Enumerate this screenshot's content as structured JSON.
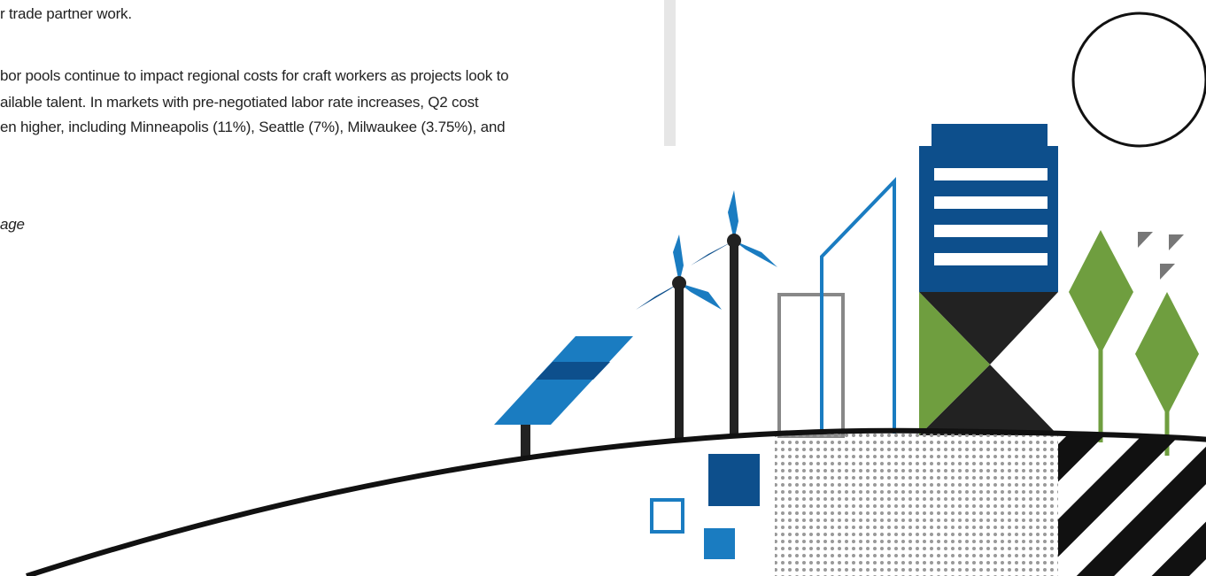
{
  "paragraphs": [
    "r trade partner work.",
    "bor pools continue to impact regional costs for craft workers as projects look to",
    "ailable talent. In markets with pre-negotiated labor rate increases, Q2 cost",
    "en higher, including Minneapolis (11%), Seattle (7%), Milwaukee (3.75%), and"
  ],
  "caption": "age"
}
